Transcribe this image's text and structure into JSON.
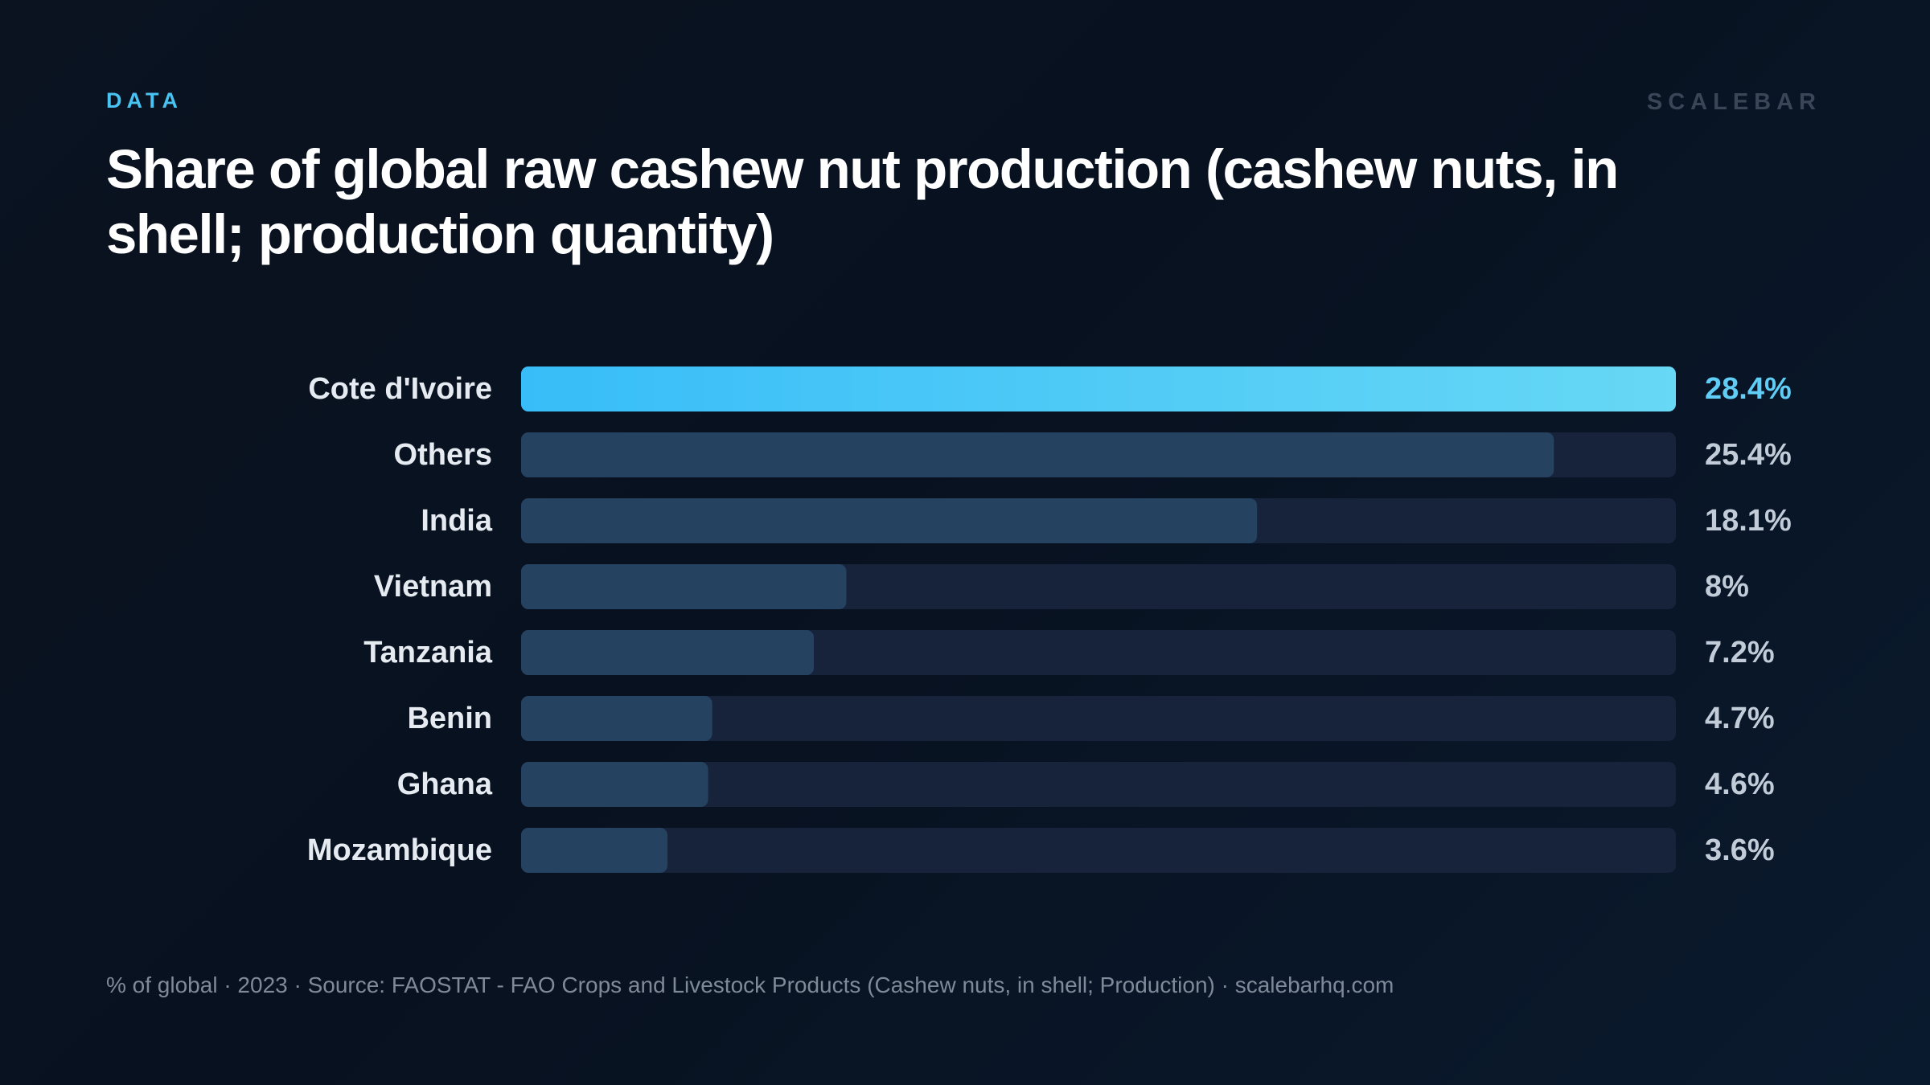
{
  "header": {
    "kicker": "DATA",
    "brand": "SCALEBAR"
  },
  "footer": {
    "note": "% of global · 2023 · Source: FAOSTAT - FAO Crops and Livestock Products (Cashew nuts, in shell; Production) · scalebarhq.com"
  },
  "colors": {
    "highlight_start": "#38bdf8",
    "highlight_end": "#67d8f5",
    "bar": "#264261",
    "track": "#17233a",
    "highlight_value": "#5fcdf5"
  },
  "chart_data": {
    "type": "bar",
    "orientation": "horizontal",
    "title": "Share of global raw cashew nut production (cashew nuts, in shell; production quantity)",
    "categories": [
      "Cote d'Ivoire",
      "Others",
      "India",
      "Vietnam",
      "Tanzania",
      "Benin",
      "Ghana",
      "Mozambique"
    ],
    "values": [
      28.4,
      25.4,
      18.1,
      8,
      7.2,
      4.7,
      4.6,
      3.6
    ],
    "value_labels": [
      "28.4%",
      "25.4%",
      "18.1%",
      "8%",
      "7.2%",
      "4.7%",
      "4.6%",
      "3.6%"
    ],
    "xlim": [
      0,
      28.4
    ],
    "highlight_index": 0,
    "grid": false,
    "legend": false
  }
}
